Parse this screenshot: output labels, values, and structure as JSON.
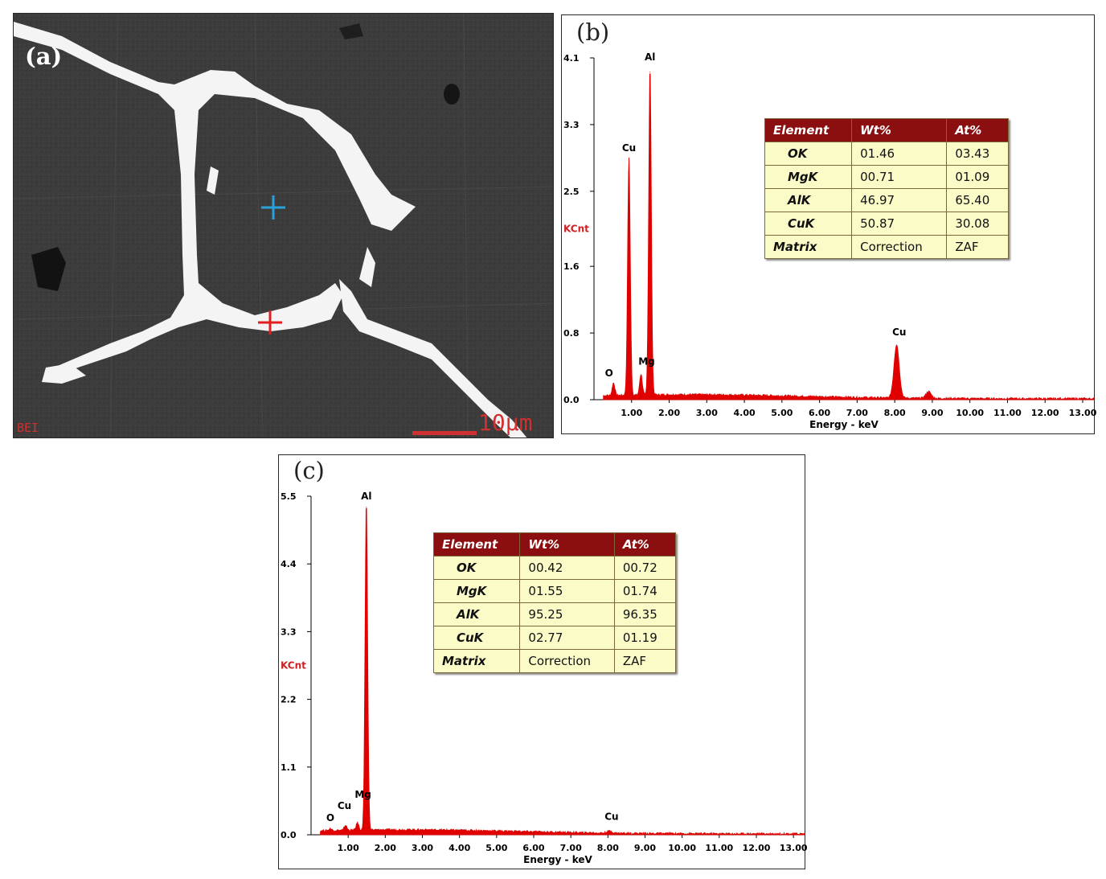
{
  "panels": {
    "a": {
      "tag": "(a)",
      "detector": "BEI",
      "scale_bar": "10μm",
      "marker_colors": {
        "matrix": "#2a9fd8",
        "grain_boundary": "#e02020"
      }
    },
    "b": {
      "tag": "(b)"
    },
    "c": {
      "tag": "(c)"
    }
  },
  "chart_data": [
    {
      "id": "b",
      "type": "line",
      "xlabel": "Energy - keV",
      "ylabel": "KCnt",
      "xlim": [
        0,
        13.3
      ],
      "ylim": [
        0,
        4.1
      ],
      "x_ticks": [
        "1.00",
        "2.00",
        "3.00",
        "4.00",
        "5.00",
        "6.00",
        "7.00",
        "8.00",
        "9.00",
        "10.00",
        "11.00",
        "12.00",
        "13.00"
      ],
      "y_ticks": [
        "0.0",
        "0.8",
        "1.6",
        "2.5",
        "3.3",
        "4.1"
      ],
      "y_tick_values": [
        0,
        0.8,
        1.6,
        2.5,
        3.3,
        4.1
      ],
      "color": "#e00000",
      "peaks": [
        {
          "label": "O",
          "x": 0.52,
          "y": 0.15
        },
        {
          "label": "Cu",
          "x": 0.93,
          "y": 2.86
        },
        {
          "label": "Mg",
          "x": 1.25,
          "y": 0.25
        },
        {
          "label": "Al",
          "x": 1.49,
          "y": 3.93
        },
        {
          "label": "Cu",
          "x": 8.05,
          "y": 0.64
        },
        {
          "label": "",
          "x": 8.9,
          "y": 0.08
        }
      ],
      "peak_labels": [
        {
          "text": "O",
          "x": 0.4,
          "y": 0.28
        },
        {
          "text": "Cu",
          "x": 0.93,
          "y": 2.98
        },
        {
          "text": "Mg",
          "x": 1.4,
          "y": 0.42
        },
        {
          "text": "Al",
          "x": 1.49,
          "y": 4.07
        },
        {
          "text": "Cu",
          "x": 8.12,
          "y": 0.77
        }
      ],
      "table": {
        "headers": [
          "Element",
          "Wt%",
          "At%"
        ],
        "rows": [
          [
            "OK",
            "01.46",
            "03.43"
          ],
          [
            "MgK",
            "00.71",
            "01.09"
          ],
          [
            "AlK",
            "46.97",
            "65.40"
          ],
          [
            "CuK",
            "50.87",
            "30.08"
          ],
          [
            "Matrix",
            "Correction",
            "ZAF"
          ]
        ]
      }
    },
    {
      "id": "c",
      "type": "line",
      "xlabel": "Energy - keV",
      "ylabel": "KCnt",
      "xlim": [
        0,
        13.3
      ],
      "ylim": [
        0,
        5.5
      ],
      "x_ticks": [
        "1.00",
        "2.00",
        "3.00",
        "4.00",
        "5.00",
        "6.00",
        "7.00",
        "8.00",
        "9.00",
        "10.00",
        "11.00",
        "12.00",
        "13.00"
      ],
      "y_ticks": [
        "0.0",
        "1.1",
        "2.2",
        "3.3",
        "4.4",
        "5.5"
      ],
      "y_tick_values": [
        0,
        1.1,
        2.2,
        3.3,
        4.4,
        5.5
      ],
      "color": "#e00000",
      "peaks": [
        {
          "label": "O",
          "x": 0.52,
          "y": 0.03
        },
        {
          "label": "Cu",
          "x": 0.93,
          "y": 0.08
        },
        {
          "label": "Mg",
          "x": 1.25,
          "y": 0.12
        },
        {
          "label": "Al",
          "x": 1.49,
          "y": 5.32
        },
        {
          "label": "Cu",
          "x": 8.05,
          "y": 0.03
        }
      ],
      "peak_labels": [
        {
          "text": "O",
          "x": 0.52,
          "y": 0.22
        },
        {
          "text": "Cu",
          "x": 0.9,
          "y": 0.42
        },
        {
          "text": "Mg",
          "x": 1.4,
          "y": 0.6
        },
        {
          "text": "Al",
          "x": 1.49,
          "y": 5.45
        },
        {
          "text": "Cu",
          "x": 8.1,
          "y": 0.24
        }
      ],
      "table": {
        "headers": [
          "Element",
          "Wt%",
          "At%"
        ],
        "rows": [
          [
            "OK",
            "00.42",
            "00.72"
          ],
          [
            "MgK",
            "01.55",
            "01.74"
          ],
          [
            "AlK",
            "95.25",
            "96.35"
          ],
          [
            "CuK",
            "02.77",
            "01.19"
          ],
          [
            "Matrix",
            "Correction",
            "ZAF"
          ]
        ]
      }
    }
  ]
}
